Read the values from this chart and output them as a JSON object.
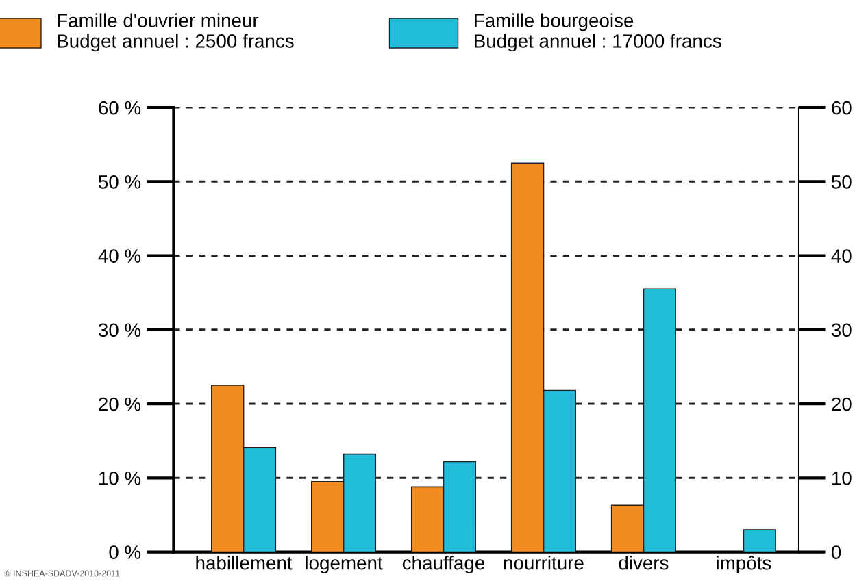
{
  "chart_data": {
    "type": "bar",
    "categories": [
      "habillement",
      "logement",
      "chauffage",
      "nourriture",
      "divers",
      "impôts"
    ],
    "series": [
      {
        "name": "Famille d'ouvrier mineur\nBudget annuel : 2500 francs",
        "color": "#f28c1f",
        "values": [
          22.5,
          9.5,
          8.8,
          52.5,
          6.3,
          null
        ]
      },
      {
        "name": "Famille bourgeoise\nBudget annuel : 17000 francs",
        "color": "#22bcdb",
        "values": [
          14.1,
          13.2,
          12.2,
          21.8,
          35.5,
          3
        ]
      }
    ],
    "ylim": [
      0,
      60
    ],
    "yticks": [
      {
        "value": 0,
        "label": "0 %"
      },
      {
        "value": 10,
        "label": "10 %"
      },
      {
        "value": 20,
        "label": "20 %"
      },
      {
        "value": 30,
        "label": "30 %"
      },
      {
        "value": 40,
        "label": "40 %"
      },
      {
        "value": 50,
        "label": "50 %"
      },
      {
        "value": 60,
        "label": "60 %"
      }
    ],
    "y2lim": [
      0,
      60
    ],
    "y2ticks": [
      0,
      10,
      20,
      30,
      40,
      50,
      60
    ],
    "grid": "y",
    "line_style": "dashed",
    "legend": "top",
    "annotations": [
      "© INSHEA-SDADV-2010-2011"
    ]
  }
}
